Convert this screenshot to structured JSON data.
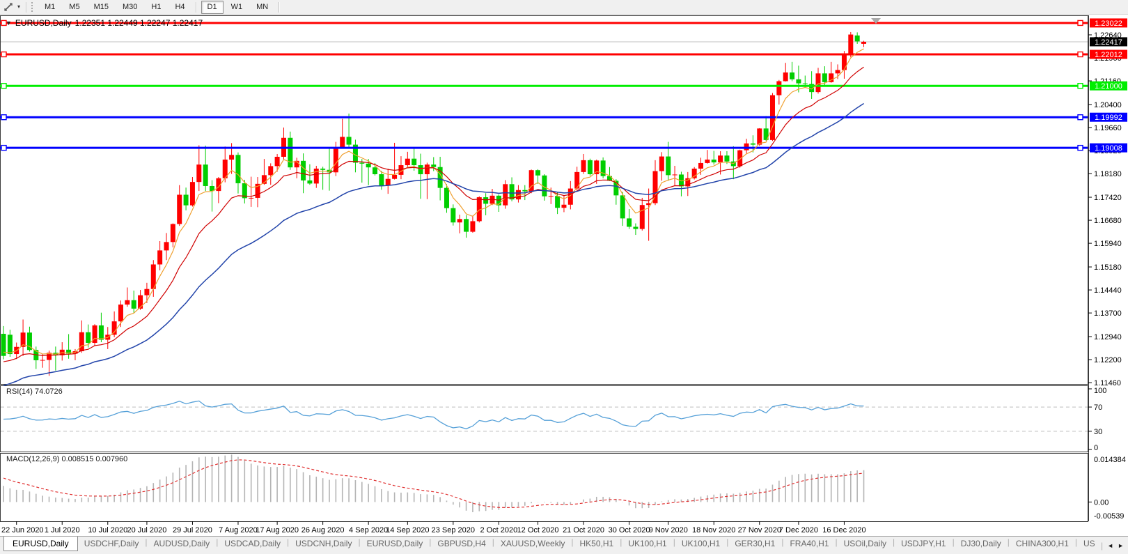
{
  "icons": {
    "menu_caret": "▼",
    "dropdown_caret": "▾",
    "scroll_left": "◄",
    "scroll_right": "►"
  },
  "toolbar": {
    "timeframes": [
      "M1",
      "M5",
      "M15",
      "M30",
      "H1",
      "H4",
      "D1",
      "W1",
      "MN"
    ],
    "active": "D1"
  },
  "chart": {
    "title": "EURUSD,Daily",
    "ohlc_text": "1.22351 1.22449 1.22247 1.22417"
  },
  "chart_data": {
    "type": "candlestick",
    "symbol": "EURUSD",
    "timeframe": "Daily",
    "current_bar": {
      "open": 1.22351,
      "high": 1.22449,
      "low": 1.22247,
      "close": 1.22417
    },
    "candle_colors": {
      "bull": "#FF0000",
      "bear": "#00CE00"
    },
    "y_ticks": [
      1.2264,
      1.219,
      1.2116,
      1.204,
      1.1966,
      1.1892,
      1.1818,
      1.1742,
      1.1668,
      1.1594,
      1.1518,
      1.1444,
      1.137,
      1.1294,
      1.122,
      1.1146
    ],
    "price_range": {
      "top": 1.23267,
      "bottom": 1.11418
    },
    "x_labels": [
      {
        "label": "22 Jun 2020",
        "bar": 2
      },
      {
        "label": "1 Jul 2020",
        "bar": 9
      },
      {
        "label": "10 Jul 2020",
        "bar": 16
      },
      {
        "label": "20 Jul 2020",
        "bar": 22
      },
      {
        "label": "29 Jul 2020",
        "bar": 29
      },
      {
        "label": "7 Aug 2020",
        "bar": 36
      },
      {
        "label": "17 Aug 2020",
        "bar": 42
      },
      {
        "label": "26 Aug 2020",
        "bar": 49
      },
      {
        "label": "4 Sep 2020",
        "bar": 56
      },
      {
        "label": "14 Sep 2020",
        "bar": 62
      },
      {
        "label": "23 Sep 2020",
        "bar": 69
      },
      {
        "label": "2 Oct 2020",
        "bar": 76
      },
      {
        "label": "12 Oct 2020",
        "bar": 82
      },
      {
        "label": "21 Oct 2020",
        "bar": 89
      },
      {
        "label": "30 Oct 2020",
        "bar": 96
      },
      {
        "label": "9 Nov 2020",
        "bar": 102
      },
      {
        "label": "18 Nov 2020",
        "bar": 109
      },
      {
        "label": "27 Nov 2020",
        "bar": 116
      },
      {
        "label": "7 Dec 2020",
        "bar": 122
      },
      {
        "label": "16 Dec 2020",
        "bar": 129
      }
    ],
    "h_lines": [
      {
        "value": 1.23022,
        "label": "1.23022",
        "color": "#FF0000"
      },
      {
        "value": 1.22012,
        "label": "1.22012",
        "color": "#FF0000"
      },
      {
        "value": 1.21,
        "label": "1.21000",
        "color": "#00EE00"
      },
      {
        "value": 1.19992,
        "label": "1.19992",
        "color": "#0000FF"
      },
      {
        "value": 1.19008,
        "label": "1.19008",
        "color": "#0000FF"
      }
    ],
    "bid_line": {
      "value": 1.22417,
      "label": "1.22417",
      "line_color": "#C0C0C0",
      "box_color": "#000000"
    },
    "moving_averages": [
      {
        "period": 5,
        "method": "ema",
        "color": "#EFA030"
      },
      {
        "period": 12,
        "method": "ema",
        "color": "#D00000"
      },
      {
        "period": 30,
        "method": "ema",
        "color": "#2244AA"
      }
    ],
    "marker": {
      "shape": "triangle-down",
      "x": 1258,
      "color": "#A9A9A9"
    },
    "rsi": {
      "label": "RSI(14) 74.0726",
      "period": 14,
      "current": 74.0726,
      "levels": [
        70,
        30
      ],
      "scale": [
        0,
        100
      ],
      "axis_labels": [
        100,
        70,
        30,
        0
      ],
      "color": "#55A0D8"
    },
    "macd": {
      "label": "MACD(12,26,9) 0.008515 0.007960",
      "params": [
        12,
        26,
        9
      ],
      "macd_value": 0.008515,
      "signal_value": 0.00796,
      "axis_max": 0.014384,
      "axis_min": -0.00539,
      "axis_labels": [
        "0.014384",
        "0.00",
        "-0.00539"
      ],
      "histogram_color": "#B4B4B4",
      "signal_color": "#E03030"
    },
    "candles": [
      [
        1.1303,
        1.1328,
        1.1221,
        1.1232
      ],
      [
        1.13,
        1.1316,
        1.1229,
        1.1238
      ],
      [
        1.1238,
        1.1275,
        1.1222,
        1.1261
      ],
      [
        1.1261,
        1.1349,
        1.1232,
        1.1307
      ],
      [
        1.1307,
        1.1326,
        1.1246,
        1.1251
      ],
      [
        1.1251,
        1.1262,
        1.119,
        1.1218
      ],
      [
        1.1218,
        1.1239,
        1.1194,
        1.1219
      ],
      [
        1.1219,
        1.1249,
        1.1168,
        1.1242
      ],
      [
        1.1242,
        1.1262,
        1.1185,
        1.1234
      ],
      [
        1.1234,
        1.1276,
        1.1217,
        1.1252
      ],
      [
        1.1252,
        1.1302,
        1.1223,
        1.1239
      ],
      [
        1.1239,
        1.1254,
        1.1218,
        1.1247
      ],
      [
        1.1247,
        1.1346,
        1.1242,
        1.1308
      ],
      [
        1.1308,
        1.1333,
        1.1259,
        1.1274
      ],
      [
        1.1274,
        1.1334,
        1.1263,
        1.133
      ],
      [
        1.133,
        1.1371,
        1.1276,
        1.1284
      ],
      [
        1.1284,
        1.1325,
        1.1254,
        1.13
      ],
      [
        1.13,
        1.1375,
        1.1292,
        1.1343
      ],
      [
        1.1343,
        1.141,
        1.1325,
        1.1397
      ],
      [
        1.1397,
        1.1452,
        1.139,
        1.1411
      ],
      [
        1.1411,
        1.1442,
        1.137,
        1.1384
      ],
      [
        1.1384,
        1.1444,
        1.138,
        1.1427
      ],
      [
        1.1427,
        1.1467,
        1.1402,
        1.1447
      ],
      [
        1.1447,
        1.154,
        1.1422,
        1.1526
      ],
      [
        1.1526,
        1.1601,
        1.1507,
        1.1571
      ],
      [
        1.1571,
        1.1627,
        1.154,
        1.1598
      ],
      [
        1.1598,
        1.1658,
        1.1581,
        1.1656
      ],
      [
        1.1656,
        1.1781,
        1.165,
        1.175
      ],
      [
        1.175,
        1.1773,
        1.17,
        1.1716
      ],
      [
        1.1716,
        1.1807,
        1.1712,
        1.1791
      ],
      [
        1.1791,
        1.1909,
        1.1762,
        1.1847
      ],
      [
        1.1847,
        1.1908,
        1.1762,
        1.1778
      ],
      [
        1.1778,
        1.1797,
        1.1696,
        1.1762
      ],
      [
        1.1762,
        1.1807,
        1.1723,
        1.1803
      ],
      [
        1.1803,
        1.1905,
        1.179,
        1.1863
      ],
      [
        1.1863,
        1.1916,
        1.1817,
        1.1878
      ],
      [
        1.1878,
        1.1886,
        1.1754,
        1.1787
      ],
      [
        1.1787,
        1.1798,
        1.1722,
        1.1739
      ],
      [
        1.1739,
        1.1808,
        1.1711,
        1.174
      ],
      [
        1.174,
        1.1807,
        1.171,
        1.1785
      ],
      [
        1.1785,
        1.1865,
        1.1782,
        1.1813
      ],
      [
        1.1813,
        1.1851,
        1.1782,
        1.1842
      ],
      [
        1.1842,
        1.1881,
        1.1824,
        1.1872
      ],
      [
        1.1872,
        1.1966,
        1.1863,
        1.1933
      ],
      [
        1.1933,
        1.1953,
        1.183,
        1.1838
      ],
      [
        1.1838,
        1.1869,
        1.1803,
        1.1859
      ],
      [
        1.1859,
        1.1883,
        1.1755,
        1.1796
      ],
      [
        1.1796,
        1.1848,
        1.1782,
        1.1786
      ],
      [
        1.1786,
        1.1843,
        1.1772,
        1.1834
      ],
      [
        1.1834,
        1.184,
        1.1766,
        1.183
      ],
      [
        1.183,
        1.1901,
        1.1763,
        1.1822
      ],
      [
        1.1822,
        1.192,
        1.181,
        1.1903
      ],
      [
        1.1903,
        1.1994,
        1.1898,
        1.1936
      ],
      [
        1.1936,
        1.2011,
        1.1899,
        1.1911
      ],
      [
        1.1911,
        1.1927,
        1.1822,
        1.1853
      ],
      [
        1.1853,
        1.1865,
        1.1789,
        1.185
      ],
      [
        1.185,
        1.1865,
        1.1781,
        1.1838
      ],
      [
        1.1838,
        1.1852,
        1.1812,
        1.1816
      ],
      [
        1.1816,
        1.1827,
        1.1766,
        1.1779
      ],
      [
        1.1779,
        1.1834,
        1.1753,
        1.1801
      ],
      [
        1.1801,
        1.1917,
        1.1799,
        1.1814
      ],
      [
        1.1814,
        1.1874,
        1.18,
        1.1845
      ],
      [
        1.1845,
        1.1888,
        1.1839,
        1.1866
      ],
      [
        1.1866,
        1.19,
        1.1827,
        1.1845
      ],
      [
        1.1845,
        1.1882,
        1.1737,
        1.1816
      ],
      [
        1.1816,
        1.1853,
        1.1736,
        1.1847
      ],
      [
        1.1847,
        1.1871,
        1.1826,
        1.1839
      ],
      [
        1.1839,
        1.1872,
        1.1732,
        1.1772
      ],
      [
        1.1772,
        1.1784,
        1.1692,
        1.1707
      ],
      [
        1.1707,
        1.1719,
        1.1651,
        1.1661
      ],
      [
        1.1661,
        1.1686,
        1.1626,
        1.1672
      ],
      [
        1.1672,
        1.1685,
        1.1612,
        1.1631
      ],
      [
        1.1631,
        1.1683,
        1.1628,
        1.1665
      ],
      [
        1.1665,
        1.1745,
        1.1661,
        1.1742
      ],
      [
        1.1742,
        1.1755,
        1.1684,
        1.1721
      ],
      [
        1.1721,
        1.1769,
        1.1717,
        1.1747
      ],
      [
        1.1747,
        1.1751,
        1.1695,
        1.1716
      ],
      [
        1.1716,
        1.1797,
        1.1705,
        1.1784
      ],
      [
        1.1784,
        1.1806,
        1.1729,
        1.1735
      ],
      [
        1.1735,
        1.1781,
        1.1725,
        1.1765
      ],
      [
        1.1765,
        1.1781,
        1.1733,
        1.1761
      ],
      [
        1.1761,
        1.1831,
        1.1755,
        1.1829
      ],
      [
        1.1829,
        1.1832,
        1.1785,
        1.1812
      ],
      [
        1.1812,
        1.1816,
        1.1731,
        1.1745
      ],
      [
        1.1745,
        1.1773,
        1.172,
        1.1746
      ],
      [
        1.1746,
        1.1758,
        1.1688,
        1.1708
      ],
      [
        1.1708,
        1.1747,
        1.1694,
        1.1718
      ],
      [
        1.1718,
        1.1794,
        1.1703,
        1.177
      ],
      [
        1.177,
        1.184,
        1.1761,
        1.1823
      ],
      [
        1.1823,
        1.1881,
        1.1817,
        1.1861
      ],
      [
        1.1861,
        1.1866,
        1.1811,
        1.1816
      ],
      [
        1.1816,
        1.1863,
        1.1785,
        1.186
      ],
      [
        1.186,
        1.187,
        1.1803,
        1.181
      ],
      [
        1.181,
        1.1839,
        1.1794,
        1.1795
      ],
      [
        1.1795,
        1.18,
        1.1718,
        1.1748
      ],
      [
        1.1748,
        1.1759,
        1.165,
        1.1674
      ],
      [
        1.1674,
        1.1704,
        1.164,
        1.1647
      ],
      [
        1.1647,
        1.1658,
        1.1621,
        1.164
      ],
      [
        1.164,
        1.174,
        1.1635,
        1.1717
      ],
      [
        1.1717,
        1.177,
        1.1602,
        1.1723
      ],
      [
        1.1723,
        1.1861,
        1.1717,
        1.1826
      ],
      [
        1.1826,
        1.1887,
        1.1795,
        1.1873
      ],
      [
        1.1873,
        1.192,
        1.1795,
        1.1813
      ],
      [
        1.1813,
        1.1843,
        1.178,
        1.1815
      ],
      [
        1.1815,
        1.1824,
        1.1745,
        1.1777
      ],
      [
        1.1777,
        1.1823,
        1.1746,
        1.1803
      ],
      [
        1.1803,
        1.1839,
        1.1799,
        1.1834
      ],
      [
        1.1834,
        1.1869,
        1.1814,
        1.1852
      ],
      [
        1.1852,
        1.1894,
        1.185,
        1.1863
      ],
      [
        1.1863,
        1.1891,
        1.1847,
        1.1854
      ],
      [
        1.1854,
        1.189,
        1.1815,
        1.1876
      ],
      [
        1.1876,
        1.189,
        1.1849,
        1.1857
      ],
      [
        1.1857,
        1.1906,
        1.18,
        1.1842
      ],
      [
        1.1842,
        1.1895,
        1.1837,
        1.1893
      ],
      [
        1.1893,
        1.193,
        1.1881,
        1.1915
      ],
      [
        1.1915,
        1.1941,
        1.1886,
        1.1911
      ],
      [
        1.1911,
        1.1964,
        1.1907,
        1.1963
      ],
      [
        1.1963,
        1.2003,
        1.1924,
        1.1926
      ],
      [
        1.1926,
        1.2077,
        1.1923,
        1.207
      ],
      [
        1.207,
        1.2119,
        1.204,
        1.2115
      ],
      [
        1.2115,
        1.2174,
        1.2114,
        1.2143
      ],
      [
        1.2143,
        1.2177,
        1.2115,
        1.2121
      ],
      [
        1.2121,
        1.2165,
        1.2079,
        1.2108
      ],
      [
        1.2108,
        1.2133,
        1.2095,
        1.2106
      ],
      [
        1.2106,
        1.2147,
        1.2058,
        1.208
      ],
      [
        1.208,
        1.2158,
        1.2075,
        1.214
      ],
      [
        1.214,
        1.2163,
        1.21,
        1.2112
      ],
      [
        1.2112,
        1.2177,
        1.211,
        1.214
      ],
      [
        1.214,
        1.2169,
        1.2122,
        1.2151
      ],
      [
        1.2151,
        1.2212,
        1.2123,
        1.2199
      ],
      [
        1.2198,
        1.2273,
        1.2192,
        1.2265
      ],
      [
        1.2262,
        1.2272,
        1.2235,
        1.2243
      ],
      [
        1.22351,
        1.22449,
        1.22247,
        1.22417
      ]
    ]
  },
  "tabs": {
    "items": [
      {
        "label": "EURUSD,Daily",
        "active": true
      },
      {
        "label": "USDCHF,Daily"
      },
      {
        "label": "AUDUSD,Daily"
      },
      {
        "label": "USDCAD,Daily"
      },
      {
        "label": "USDCNH,Daily"
      },
      {
        "label": "EURUSD,Daily"
      },
      {
        "label": "GBPUSD,H4"
      },
      {
        "label": "XAUUSD,Weekly"
      },
      {
        "label": "HK50,H1"
      },
      {
        "label": "UK100,H1"
      },
      {
        "label": "UK100,H1"
      },
      {
        "label": "GER30,H1"
      },
      {
        "label": "FRA40,H1"
      },
      {
        "label": "USOil,Daily"
      },
      {
        "label": "USDJPY,H1"
      },
      {
        "label": "DJ30,Daily"
      },
      {
        "label": "CHINA300,H1"
      },
      {
        "label": "US"
      }
    ]
  }
}
